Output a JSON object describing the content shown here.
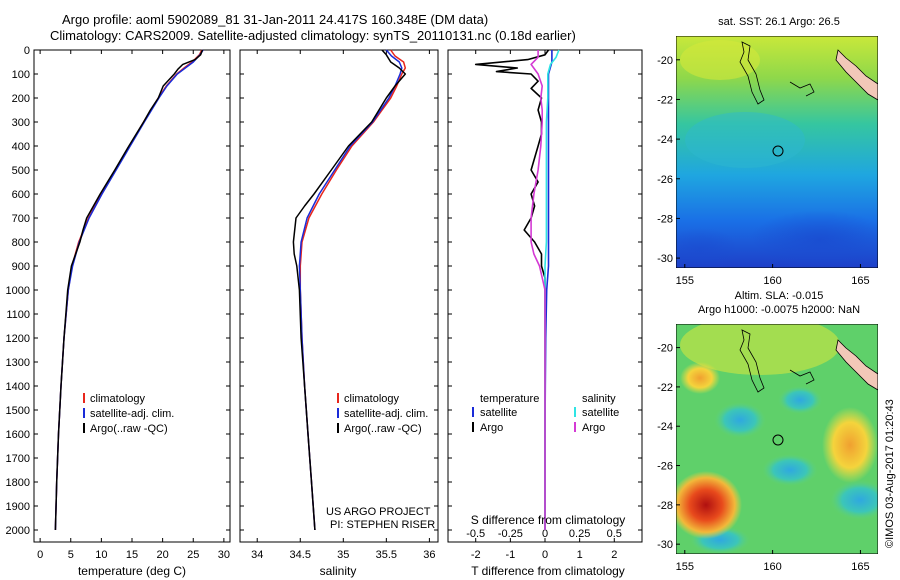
{
  "title": {
    "line1": "Argo profile: aoml 5902089_81 31-Jan-2011 24.417S 160.348E (DM data)",
    "line2": "Climatology: CARS2009. Satellite-adjusted climatology: synTS_20110131.nc (0.18d earlier)"
  },
  "colors": {
    "climatology": "#e8261c",
    "satellite": "#1a2bd8",
    "argo": "#000000",
    "argo_salinity": "#d43ad4",
    "satellite_salinity": "#2fe4e4"
  },
  "chart_data": [
    {
      "type": "line",
      "name": "temperature-profile",
      "xlabel": "temperature (deg C)",
      "ylabel": "",
      "xlim": [
        -1,
        31
      ],
      "ylim": [
        2050,
        0
      ],
      "xticks": [
        "0",
        "5",
        "10",
        "15",
        "20",
        "25",
        "30"
      ],
      "yticks": [
        "0",
        "100",
        "200",
        "300",
        "400",
        "500",
        "600",
        "700",
        "800",
        "900",
        "1000",
        "1100",
        "1200",
        "1300",
        "1400",
        "1500",
        "1600",
        "1700",
        "1800",
        "1900",
        "2000"
      ],
      "legend": [
        "climatology",
        "satellite-adj. clim.",
        "Argo(..raw -QC)"
      ],
      "series": [
        {
          "name": "climatology",
          "depth": [
            0,
            20,
            50,
            75,
            100,
            150,
            200,
            300,
            400,
            500,
            600,
            700,
            800,
            900,
            1000,
            1200,
            1400,
            1600,
            1800,
            2000
          ],
          "values": [
            26.4,
            26.0,
            24.8,
            23.5,
            22.3,
            20.6,
            19.3,
            16.9,
            14.6,
            12.3,
            10.0,
            7.9,
            6.3,
            5.2,
            4.6,
            3.9,
            3.4,
            3.0,
            2.7,
            2.5
          ]
        },
        {
          "name": "satellite-adj. clim.",
          "depth": [
            0,
            20,
            50,
            75,
            100,
            150,
            200,
            300,
            400,
            500,
            600,
            700,
            800,
            900,
            1000,
            1200,
            1400,
            1600,
            1800,
            2000
          ],
          "values": [
            26.6,
            26.1,
            25.0,
            23.7,
            22.4,
            20.7,
            19.4,
            17.0,
            14.7,
            12.4,
            10.1,
            8.0,
            6.4,
            5.3,
            4.6,
            3.9,
            3.4,
            3.0,
            2.7,
            2.5
          ]
        },
        {
          "name": "Argo(..raw -QC)",
          "depth": [
            0,
            20,
            40,
            60,
            80,
            100,
            150,
            200,
            250,
            300,
            400,
            500,
            600,
            700,
            750,
            800,
            900,
            1000,
            1200,
            1400,
            1600,
            1800,
            2000
          ],
          "values": [
            26.5,
            26.2,
            25.3,
            23.3,
            22.5,
            21.9,
            20.1,
            19.3,
            18.0,
            16.9,
            14.5,
            12.2,
            9.8,
            7.6,
            7.0,
            6.5,
            5.1,
            4.5,
            3.9,
            3.4,
            3.0,
            2.7,
            2.5
          ]
        }
      ]
    },
    {
      "type": "line",
      "name": "salinity-profile",
      "xlabel": "salinity",
      "xlim": [
        33.8,
        36.1
      ],
      "ylim": [
        2050,
        0
      ],
      "xticks": [
        "34",
        "34.5",
        "35",
        "35.5",
        "36"
      ],
      "legend": [
        "climatology",
        "satellite-adj. clim.",
        "Argo(..raw -QC)"
      ],
      "annotation": [
        "US ARGO PROJECT",
        "PI: STEPHEN RISER"
      ],
      "series": [
        {
          "name": "climatology",
          "depth": [
            0,
            25,
            50,
            75,
            100,
            150,
            200,
            300,
            400,
            500,
            600,
            700,
            800,
            900,
            1000,
            1200,
            1400,
            1600,
            1800,
            2000
          ],
          "values": [
            35.55,
            35.6,
            35.7,
            35.72,
            35.68,
            35.62,
            35.55,
            35.35,
            35.1,
            34.92,
            34.75,
            34.6,
            34.52,
            34.5,
            34.5,
            34.52,
            34.55,
            34.59,
            34.63,
            34.67
          ]
        },
        {
          "name": "satellite-adj. clim.",
          "depth": [
            0,
            25,
            50,
            75,
            100,
            150,
            200,
            300,
            400,
            500,
            600,
            700,
            800,
            900,
            1000,
            1200,
            1400,
            1600,
            1800,
            2000
          ],
          "values": [
            35.5,
            35.56,
            35.65,
            35.68,
            35.66,
            35.6,
            35.53,
            35.34,
            35.08,
            34.9,
            34.72,
            34.58,
            34.51,
            34.49,
            34.5,
            34.52,
            34.55,
            34.59,
            34.63,
            34.67
          ]
        },
        {
          "name": "Argo(..raw -QC)",
          "depth": [
            0,
            20,
            50,
            75,
            100,
            150,
            200,
            300,
            400,
            500,
            600,
            650,
            700,
            800,
            850,
            900,
            1000,
            1200,
            1400,
            1600,
            1800,
            2000
          ],
          "values": [
            35.45,
            35.5,
            35.55,
            35.65,
            35.72,
            35.6,
            35.5,
            35.33,
            35.06,
            34.86,
            34.66,
            34.55,
            34.45,
            34.42,
            34.43,
            34.46,
            34.49,
            34.51,
            34.55,
            34.59,
            34.63,
            34.67
          ]
        }
      ]
    },
    {
      "type": "line",
      "name": "difference-profile",
      "xlabel": "T difference from climatology",
      "xlabel_top": "S difference from climatology",
      "xlim": [
        -2.8,
        2.8
      ],
      "ylim": [
        2050,
        0
      ],
      "xticks": [
        "-2",
        "-1",
        "0",
        "1",
        "2"
      ],
      "xticks_top": [
        "-0.5",
        "-0.25",
        "0",
        "0.25",
        "0.5"
      ],
      "legend_titles": [
        "temperature",
        "salinity"
      ],
      "legend": [
        "satellite",
        "Argo",
        "satellite",
        "Argo"
      ],
      "series": [
        {
          "name": "T satellite",
          "depth": [
            0,
            50,
            100,
            200,
            300,
            400,
            500,
            600,
            700,
            800,
            900,
            1000,
            1200,
            1400,
            1600,
            1800,
            2000
          ],
          "values": [
            0.2,
            0.2,
            0.1,
            0.1,
            0.1,
            0.1,
            0.1,
            0.1,
            0.1,
            0.1,
            0.1,
            0.05,
            0.02,
            0.01,
            0.0,
            0.0,
            0.0
          ]
        },
        {
          "name": "T Argo",
          "depth": [
            0,
            20,
            40,
            60,
            75,
            90,
            100,
            130,
            160,
            200,
            250,
            300,
            350,
            400,
            450,
            500,
            550,
            600,
            650,
            700,
            750,
            800,
            850,
            900,
            950,
            1000,
            1200,
            1400,
            1600,
            1800,
            2000
          ],
          "values": [
            0.1,
            0.0,
            -0.5,
            -2.0,
            -0.8,
            -1.4,
            -0.4,
            -0.2,
            -0.4,
            -0.1,
            -0.2,
            -0.1,
            -0.1,
            -0.2,
            -0.3,
            -0.4,
            -0.2,
            -0.4,
            -0.3,
            -0.4,
            -0.6,
            -0.3,
            -0.1,
            -0.1,
            0.0,
            0.0,
            0.0,
            0.0,
            0.0,
            0.0,
            0.0
          ]
        },
        {
          "name": "S satellite",
          "depth": [
            0,
            30,
            60,
            100,
            150,
            200,
            300,
            400,
            500,
            600,
            700,
            800,
            900,
            1000,
            1200,
            1400,
            1600,
            1800,
            2000
          ],
          "values": [
            0.1,
            0.08,
            0.04,
            0.02,
            0.02,
            0.02,
            0.01,
            0.01,
            0.01,
            0.01,
            0.01,
            0.01,
            0.0,
            0.0,
            0.0,
            0.0,
            0.0,
            0.0,
            0.0
          ]
        },
        {
          "name": "S Argo",
          "depth": [
            0,
            30,
            60,
            100,
            150,
            200,
            250,
            300,
            400,
            500,
            600,
            700,
            800,
            850,
            900,
            1000,
            1200,
            1400,
            1600,
            1800,
            2000
          ],
          "values": [
            -0.05,
            -0.05,
            -0.1,
            -0.05,
            -0.02,
            -0.03,
            -0.02,
            -0.02,
            -0.03,
            -0.05,
            -0.08,
            -0.1,
            -0.1,
            -0.08,
            -0.04,
            0.0,
            0.0,
            0.0,
            0.0,
            0.0,
            0.0
          ]
        }
      ]
    },
    {
      "type": "heatmap",
      "name": "sst-map",
      "title": "sat. SST: 26.1  Argo: 26.5",
      "xlim": [
        154.5,
        166
      ],
      "ylim": [
        -30.5,
        -18.8
      ],
      "xticks": [
        "155",
        "160",
        "165"
      ],
      "yticks": [
        "-20",
        "-22",
        "-24",
        "-26",
        "-28",
        "-30"
      ],
      "profile_position": [
        160.348,
        -24.417
      ]
    },
    {
      "type": "heatmap",
      "name": "sla-map",
      "title_line1": "Altim. SLA: -0.015",
      "title_line2": "Argo h1000: -0.0075 h2000: NaN",
      "xlim": [
        154.5,
        166
      ],
      "ylim": [
        -30.5,
        -18.8
      ],
      "xticks": [
        "155",
        "160",
        "165"
      ],
      "yticks": [
        "-20",
        "-22",
        "-24",
        "-26",
        "-28",
        "-30"
      ],
      "profile_position": [
        160.348,
        -24.417
      ]
    }
  ],
  "watermark": "©IMOS 03-Aug-2017 01:20:43"
}
